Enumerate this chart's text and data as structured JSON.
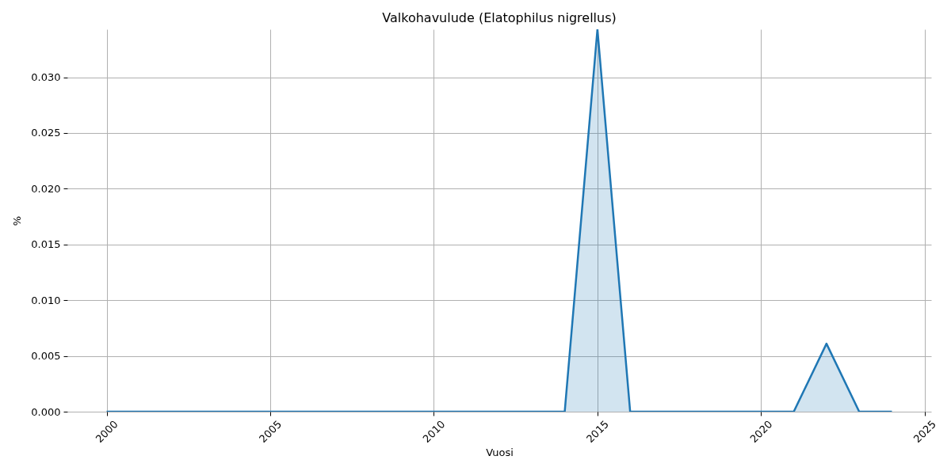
{
  "chart_data": {
    "type": "area",
    "title": "Valkohavulude (Elatophilus nigrellus)",
    "xlabel": "Vuosi",
    "ylabel": "%",
    "x": [
      2000,
      2001,
      2002,
      2003,
      2004,
      2005,
      2006,
      2007,
      2008,
      2009,
      2010,
      2011,
      2012,
      2013,
      2014,
      2015,
      2016,
      2017,
      2018,
      2019,
      2020,
      2021,
      2022,
      2023,
      2024
    ],
    "series": [
      {
        "color": "#1f77b4",
        "values": [
          0,
          0,
          0,
          0,
          0,
          0,
          0,
          0,
          0,
          0,
          0,
          0,
          0,
          0,
          0,
          0.0343,
          0,
          0,
          0,
          0,
          0,
          0,
          0.0061,
          0,
          0
        ]
      }
    ],
    "xlim": [
      1998.8,
      2025.2
    ],
    "xticks": [
      2000,
      2005,
      2010,
      2015,
      2020,
      2025
    ],
    "ylim": [
      0,
      0.0343
    ],
    "yticks": [
      {
        "value": 0,
        "label": "0.000"
      },
      {
        "value": 0.005,
        "label": "0.005"
      },
      {
        "value": 0.01,
        "label": "0.010"
      },
      {
        "value": 0.015,
        "label": "0.015"
      },
      {
        "value": 0.02,
        "label": "0.020"
      },
      {
        "value": 0.025,
        "label": "0.025"
      },
      {
        "value": 0.03,
        "label": "0.030"
      }
    ],
    "grid": true
  }
}
